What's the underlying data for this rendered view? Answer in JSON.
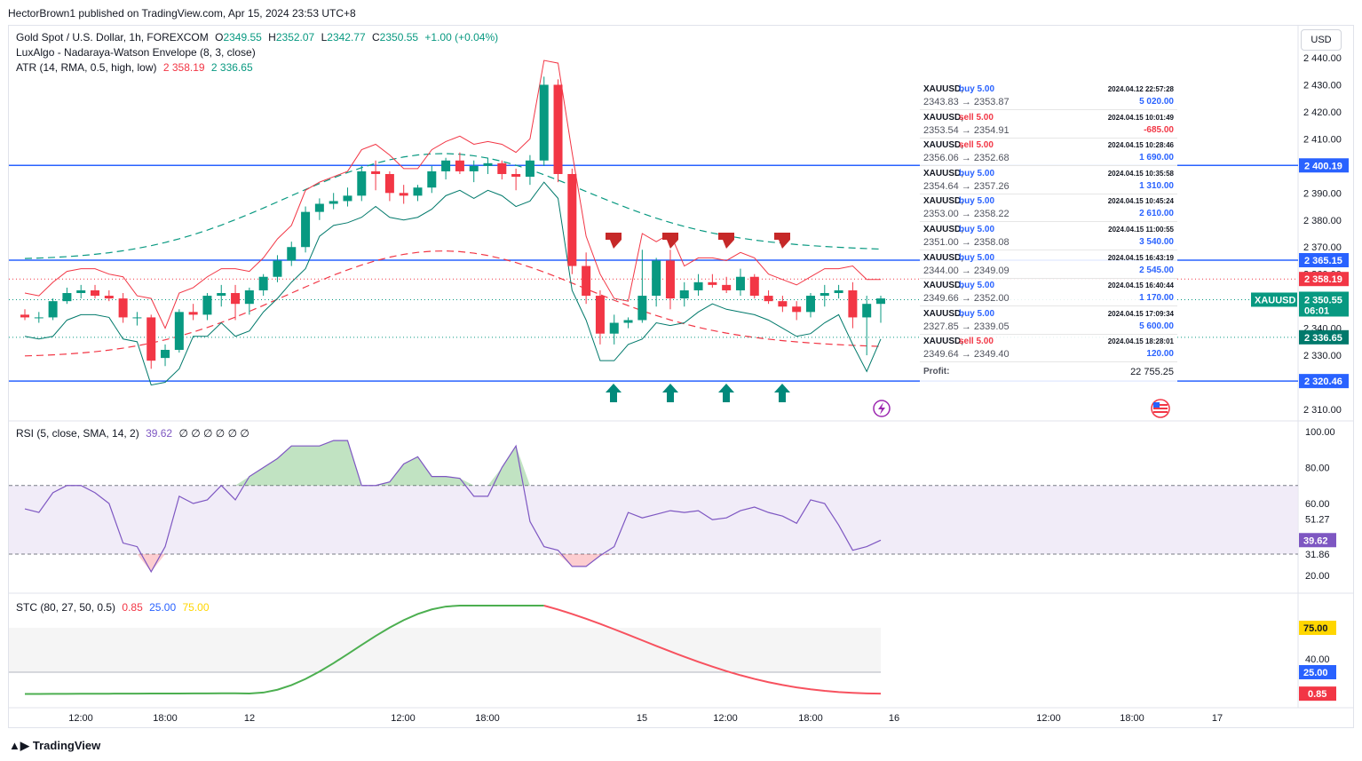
{
  "header": {
    "published": "HectorBrown1 published on TradingView.com, Apr 15, 2024 23:53 UTC+8"
  },
  "currency_button": "USD",
  "legend_main": {
    "symbol": "Gold Spot / U.S. Dollar, 1h, FOREXCOM",
    "o_label": "O",
    "o": "2349.55",
    "h_label": "H",
    "h": "2352.07",
    "l_label": "L",
    "l": "2342.77",
    "c_label": "C",
    "c": "2350.55",
    "change": "+1.00 (+0.04%)"
  },
  "legend_envelope": "LuxAlgo - Nadaraya-Watson Envelope (8, 3, close)",
  "legend_atr": {
    "name": "ATR (14, RMA, 0.5, high, low)",
    "upper": "2 358.19",
    "lower": "2 336.65"
  },
  "legend_rsi": {
    "name": "RSI (5, close, SMA, 14, 2)",
    "value": "39.62",
    "extras": "∅ ∅ ∅ ∅ ∅ ∅"
  },
  "legend_stc": {
    "name": "STC (80, 27, 50, 0.5)",
    "v1": "0.85",
    "v2": "25.00",
    "v3": "75.00"
  },
  "trades": [
    {
      "sym": "XAUUSD,",
      "side": "buy 5.00",
      "ts": "2024.04.12 22:57:28",
      "px": "2343.83 → 2353.87",
      "pnl": "5 020.00"
    },
    {
      "sym": "XAUUSD,",
      "side": "sell 5.00",
      "ts": "2024.04.15 10:01:49",
      "px": "2353.54 → 2354.91",
      "pnl": "-685.00"
    },
    {
      "sym": "XAUUSD,",
      "side": "sell 5.00",
      "ts": "2024.04.15 10:28:46",
      "px": "2356.06 → 2352.68",
      "pnl": "1 690.00"
    },
    {
      "sym": "XAUUSD,",
      "side": "buy 5.00",
      "ts": "2024.04.15 10:35:58",
      "px": "2354.64 → 2357.26",
      "pnl": "1 310.00"
    },
    {
      "sym": "XAUUSD,",
      "side": "buy 5.00",
      "ts": "2024.04.15 10:45:24",
      "px": "2353.00 → 2358.22",
      "pnl": "2 610.00"
    },
    {
      "sym": "XAUUSD,",
      "side": "buy 5.00",
      "ts": "2024.04.15 11:00:55",
      "px": "2351.00 → 2358.08",
      "pnl": "3 540.00"
    },
    {
      "sym": "XAUUSD,",
      "side": "buy 5.00",
      "ts": "2024.04.15 16:43:19",
      "px": "2344.00 → 2349.09",
      "pnl": "2 545.00"
    },
    {
      "sym": "XAUUSD,",
      "side": "buy 5.00",
      "ts": "2024.04.15 16:40:44",
      "px": "2349.66 → 2352.00",
      "pnl": "1 170.00"
    },
    {
      "sym": "XAUUSD,",
      "side": "buy 5.00",
      "ts": "2024.04.15 17:09:34",
      "px": "2327.85 → 2339.05",
      "pnl": "5 600.00"
    },
    {
      "sym": "XAUUSD,",
      "side": "sell 5.00",
      "ts": "2024.04.15 18:28:01",
      "px": "2349.64 → 2349.40",
      "pnl": "120.00"
    }
  ],
  "profit": {
    "label": "Profit:",
    "value": "22 755.25"
  },
  "price_tags": {
    "r1": "2 400.19",
    "r2": "2 365.15",
    "atr_up": "2 358.19",
    "last": "2 350.55",
    "countdown": "06:01",
    "symbol": "XAUUSD",
    "atr_dn": "2 336.65",
    "s1": "2 320.46"
  },
  "rsi_tags": {
    "value": "39.62",
    "upper": "51.27",
    "lower": "31.86"
  },
  "stc_tags": {
    "t75": "75.00",
    "t25": "25.00",
    "v": "0.85"
  },
  "footer": "TradingView",
  "colors": {
    "up": "#089981",
    "down": "#f23645",
    "line": "#2962ff",
    "rsi": "#7e57c2",
    "stc_up": "#4caf50",
    "stc_down": "#f7525f"
  },
  "chart_data": {
    "type": "candlestick",
    "title": "Gold Spot / U.S. Dollar, 1h, FOREXCOM",
    "price_axis": {
      "ticks": [
        2310,
        2320,
        2330,
        2340,
        2350,
        2360,
        2370,
        2380,
        2390,
        2400,
        2410,
        2420,
        2430,
        2440
      ],
      "range": [
        2307,
        2442
      ]
    },
    "time_axis": {
      "ticks": [
        "12:00",
        "18:00",
        "12",
        "12:00",
        "18:00",
        "15",
        "12:00",
        "18:00",
        "16",
        "12:00",
        "18:00",
        "17"
      ]
    },
    "horizontal_levels": [
      2400.19,
      2365.15,
      2320.46
    ],
    "candles": [
      [
        2345,
        2347,
        2343,
        2344
      ],
      [
        2344,
        2346,
        2342,
        2344
      ],
      [
        2344,
        2351,
        2343,
        2350
      ],
      [
        2350,
        2355,
        2349,
        2353
      ],
      [
        2353,
        2356,
        2351,
        2354
      ],
      [
        2354,
        2356,
        2351,
        2352
      ],
      [
        2352,
        2354,
        2350,
        2351
      ],
      [
        2351,
        2353,
        2342,
        2344
      ],
      [
        2344,
        2346,
        2341,
        2344
      ],
      [
        2344,
        2345,
        2325,
        2328
      ],
      [
        2329,
        2334,
        2326,
        2332
      ],
      [
        2332,
        2347,
        2331,
        2346
      ],
      [
        2346,
        2349,
        2343,
        2345
      ],
      [
        2345,
        2353,
        2343,
        2352
      ],
      [
        2352,
        2356,
        2348,
        2353
      ],
      [
        2353,
        2356,
        2343,
        2349
      ],
      [
        2349,
        2355,
        2345,
        2354
      ],
      [
        2354,
        2360,
        2352,
        2359
      ],
      [
        2359,
        2367,
        2357,
        2365
      ],
      [
        2365,
        2372,
        2363,
        2370
      ],
      [
        2370,
        2385,
        2368,
        2383
      ],
      [
        2383,
        2388,
        2380,
        2386
      ],
      [
        2386,
        2390,
        2384,
        2387
      ],
      [
        2387,
        2392,
        2385,
        2389
      ],
      [
        2389,
        2400,
        2387,
        2398
      ],
      [
        2398,
        2402,
        2391,
        2397
      ],
      [
        2397,
        2398,
        2387,
        2390
      ],
      [
        2390,
        2393,
        2386,
        2389
      ],
      [
        2389,
        2393,
        2387,
        2392
      ],
      [
        2392,
        2400,
        2390,
        2398
      ],
      [
        2398,
        2403,
        2395,
        2402
      ],
      [
        2402,
        2405,
        2397,
        2398
      ],
      [
        2398,
        2402,
        2394,
        2400
      ],
      [
        2400,
        2403,
        2397,
        2401
      ],
      [
        2401,
        2402,
        2395,
        2397
      ],
      [
        2397,
        2399,
        2391,
        2396
      ],
      [
        2396,
        2404,
        2393,
        2402
      ],
      [
        2402,
        2433,
        2400,
        2430
      ],
      [
        2430,
        2432,
        2394,
        2397
      ],
      [
        2397,
        2399,
        2360,
        2363
      ],
      [
        2363,
        2368,
        2349,
        2352
      ],
      [
        2352,
        2354,
        2334,
        2338
      ],
      [
        2338,
        2345,
        2334,
        2342
      ],
      [
        2342,
        2344,
        2340,
        2343
      ],
      [
        2343,
        2369,
        2342,
        2352
      ],
      [
        2352,
        2366,
        2348,
        2365
      ],
      [
        2365,
        2369,
        2347,
        2351
      ],
      [
        2351,
        2357,
        2348,
        2354
      ],
      [
        2354,
        2360,
        2352,
        2357
      ],
      [
        2357,
        2360,
        2355,
        2356
      ],
      [
        2356,
        2359,
        2353,
        2354
      ],
      [
        2354,
        2362,
        2352,
        2359
      ],
      [
        2359,
        2360,
        2351,
        2352
      ],
      [
        2352,
        2354,
        2349,
        2350
      ],
      [
        2350,
        2352,
        2346,
        2348
      ],
      [
        2348,
        2350,
        2343,
        2346
      ],
      [
        2346,
        2353,
        2344,
        2352
      ],
      [
        2352,
        2356,
        2348,
        2353
      ],
      [
        2353,
        2356,
        2351,
        2354
      ],
      [
        2354,
        2357,
        2340,
        2344
      ],
      [
        2344,
        2352,
        2330,
        2349
      ],
      [
        2349,
        2352,
        2342,
        2351
      ]
    ],
    "rsi": {
      "range": [
        15,
        102
      ],
      "ticks": [
        20,
        40,
        60,
        80,
        100
      ],
      "last": 39.62,
      "bands": [
        31.86,
        51.27,
        70
      ]
    },
    "stc": {
      "range": [
        -5,
        100
      ],
      "ticks": [
        40,
        75
      ],
      "levels": [
        25,
        75
      ],
      "last": 0.85
    }
  }
}
